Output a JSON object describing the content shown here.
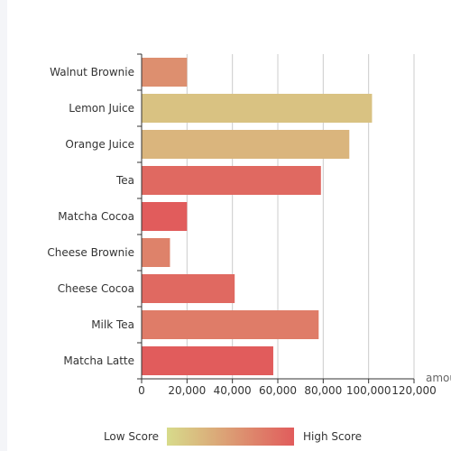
{
  "chart_data": {
    "type": "bar",
    "orientation": "horizontal",
    "categories": [
      "Walnut Brownie",
      "Lemon Juice",
      "Orange Juice",
      "Tea",
      "Matcha Cocoa",
      "Cheese Brownie",
      "Cheese Cocoa",
      "Milk Tea",
      "Matcha Latte"
    ],
    "values": [
      20000,
      101500,
      91500,
      79000,
      20000,
      12500,
      41000,
      78000,
      58000
    ],
    "scores": [
      60,
      20,
      30,
      90,
      100,
      70,
      90,
      75,
      100
    ],
    "xlabel": "amou",
    "xlim": [
      0,
      120000
    ],
    "xticks": [
      0,
      20000,
      40000,
      60000,
      80000,
      100000,
      120000
    ],
    "xtick_labels": [
      "0",
      "20,000",
      "40,000",
      "60,000",
      "80,000",
      "100,000",
      "120,000"
    ],
    "grid": true,
    "legend": {
      "type": "continuous-visual-map",
      "placement": "bottom",
      "low_label": "Low Score",
      "high_label": "High Score",
      "low_color": "#d7db8b",
      "high_color": "#e15c5c"
    }
  }
}
